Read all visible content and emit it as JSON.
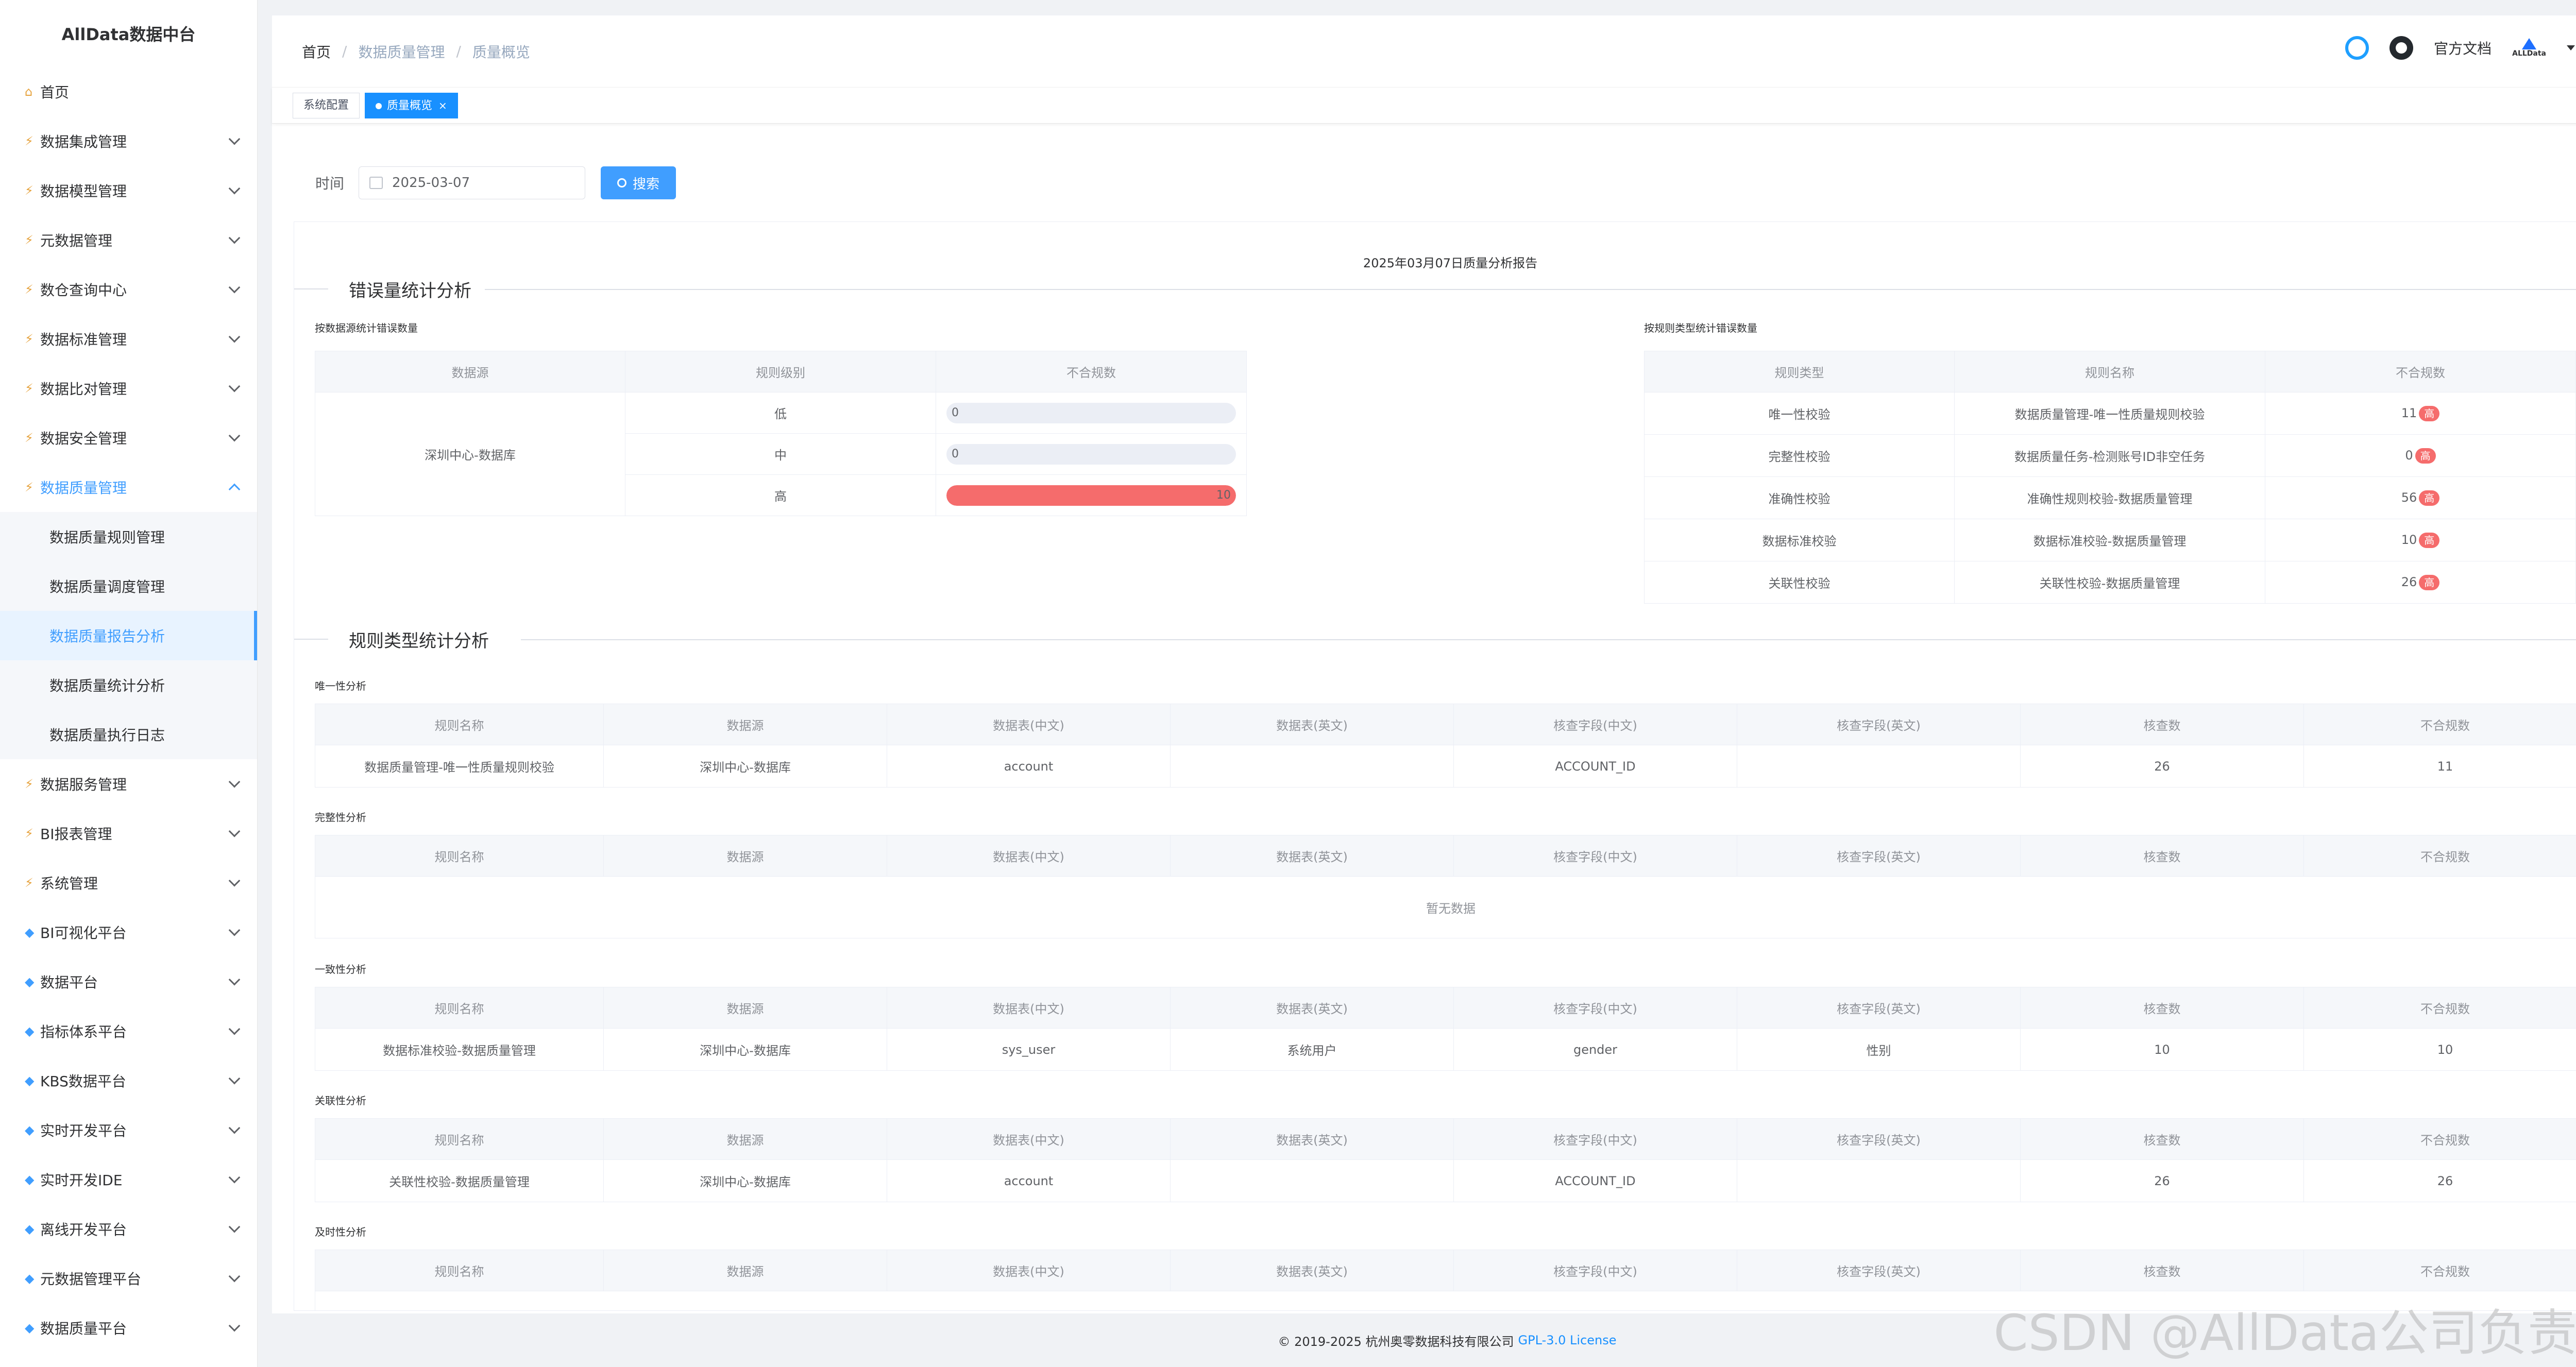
{
  "app_title": "AllData数据中台",
  "sidebar": {
    "home": "首页",
    "items": [
      {
        "label": "数据集成管理"
      },
      {
        "label": "数据模型管理"
      },
      {
        "label": "元数据管理"
      },
      {
        "label": "数仓查询中心"
      },
      {
        "label": "数据标准管理"
      },
      {
        "label": "数据比对管理"
      },
      {
        "label": "数据安全管理"
      },
      {
        "label": "数据质量管理"
      }
    ],
    "sub_items": [
      {
        "label": "数据质量规则管理"
      },
      {
        "label": "数据质量调度管理"
      },
      {
        "label": "数据质量报告分析"
      },
      {
        "label": "数据质量统计分析"
      },
      {
        "label": "数据质量执行日志"
      }
    ],
    "items2": [
      {
        "label": "数据服务管理"
      },
      {
        "label": "BI报表管理"
      },
      {
        "label": "系统管理"
      },
      {
        "label": "BI可视化平台"
      },
      {
        "label": "数据平台"
      },
      {
        "label": "指标体系平台"
      },
      {
        "label": "KBS数据平台"
      },
      {
        "label": "实时开发平台"
      },
      {
        "label": "实时开发IDE"
      },
      {
        "label": "离线开发平台"
      },
      {
        "label": "元数据管理平台"
      },
      {
        "label": "数据质量平台"
      }
    ]
  },
  "breadcrumb": {
    "home": "首页",
    "level1": "数据质量管理",
    "level2": "质量概览",
    "sep": "/"
  },
  "header": {
    "docs": "官方文档",
    "logo_text": "ALLData"
  },
  "tags": {
    "tag1": "系统配置",
    "tag2": "质量概览",
    "close": "×"
  },
  "search": {
    "label": "时间",
    "date": "2025-03-07",
    "button": "搜索"
  },
  "report": {
    "title": "2025年03月07日质量分析报告",
    "section1": "错误量统计分析",
    "by_source_title": "按数据源统计错误数量",
    "by_type_title": "按规则类型统计错误数量",
    "source_table": {
      "headers": [
        "数据源",
        "规则级别",
        "不合规数"
      ],
      "source": "深圳中心-数据库",
      "rows": [
        {
          "level": "低",
          "count": "0",
          "pct": 0
        },
        {
          "level": "中",
          "count": "0",
          "pct": 0
        },
        {
          "level": "高",
          "count": "10",
          "pct": 100
        }
      ]
    },
    "type_table": {
      "headers": [
        "规则类型",
        "规则名称",
        "不合规数"
      ],
      "badge": "高",
      "rows": [
        {
          "type": "唯一性校验",
          "name": "数据质量管理-唯一性质量规则校验",
          "count": "11"
        },
        {
          "type": "完整性校验",
          "name": "数据质量任务-检测账号ID非空任务",
          "count": "0"
        },
        {
          "type": "准确性校验",
          "name": "准确性规则校验-数据质量管理",
          "count": "56"
        },
        {
          "type": "数据标准校验",
          "name": "数据标准校验-数据质量管理",
          "count": "10"
        },
        {
          "type": "关联性校验",
          "name": "关联性校验-数据质量管理",
          "count": "26"
        }
      ]
    },
    "section2": "规则类型统计分析",
    "detail_headers": [
      "规则名称",
      "数据源",
      "数据表(中文)",
      "数据表(英文)",
      "核查字段(中文)",
      "核查字段(英文)",
      "核查数",
      "不合规数"
    ],
    "empty_text": "暂无数据",
    "uniq": {
      "title": "唯一性分析",
      "row": [
        "数据质量管理-唯一性质量规则校验",
        "深圳中心-数据库",
        "account",
        "",
        "ACCOUNT_ID",
        "",
        "26",
        "11"
      ]
    },
    "complete": {
      "title": "完整性分析"
    },
    "consist": {
      "title": "一致性分析",
      "row": [
        "数据标准校验-数据质量管理",
        "深圳中心-数据库",
        "sys_user",
        "系统用户",
        "gender",
        "性别",
        "10",
        "10"
      ]
    },
    "relate": {
      "title": "关联性分析",
      "row": [
        "关联性校验-数据质量管理",
        "深圳中心-数据库",
        "account",
        "",
        "ACCOUNT_ID",
        "",
        "26",
        "26"
      ]
    },
    "timely": {
      "title": "及时性分析"
    }
  },
  "footer": {
    "copyright": "© 2019-2025 杭州奥零数据科技有限公司",
    "license": "GPL-3.0 License"
  },
  "watermark": "CSDN @AllData公司负责人",
  "colors": {
    "primary": "#409eff",
    "danger": "#f56c6c",
    "tag_active": "#1890ff"
  }
}
